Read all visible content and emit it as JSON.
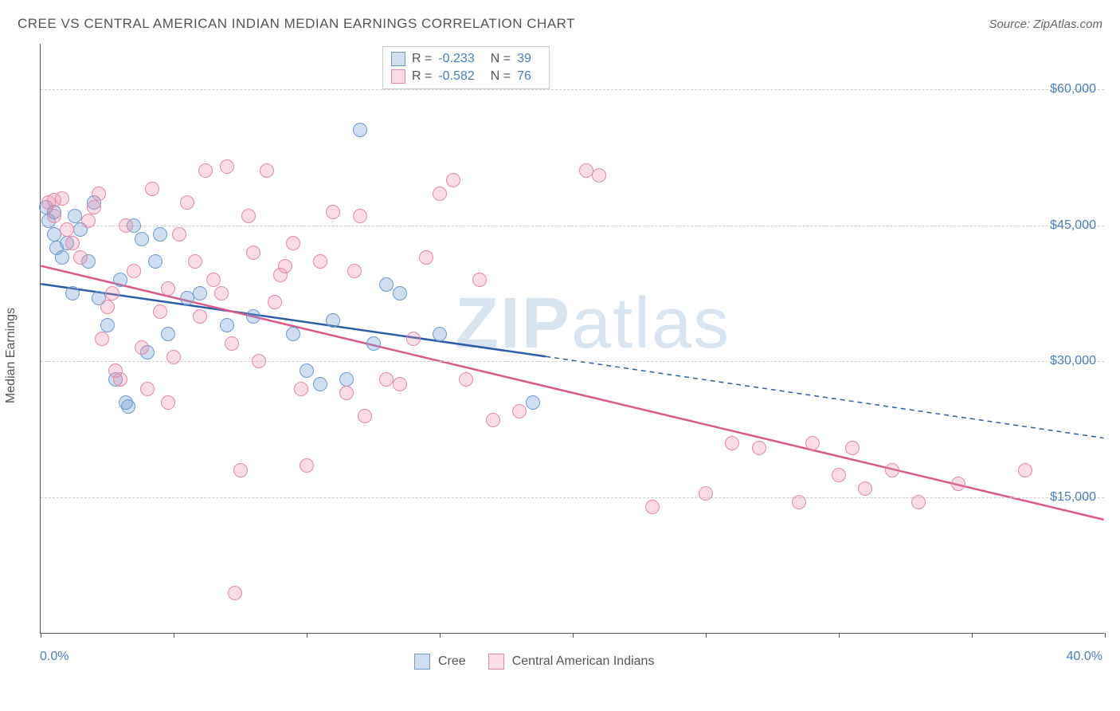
{
  "title": "CREE VS CENTRAL AMERICAN INDIAN MEDIAN EARNINGS CORRELATION CHART",
  "source": "Source: ZipAtlas.com",
  "ylabel": "Median Earnings",
  "watermark_bold": "ZIP",
  "watermark_rest": "atlas",
  "chart": {
    "type": "scatter",
    "xlim": [
      0,
      40
    ],
    "ylim": [
      0,
      65000
    ],
    "x_tick_positions": [
      0,
      5,
      10,
      15,
      20,
      25,
      30,
      35,
      40
    ],
    "x_tick_labels_shown": {
      "0": "0.0%",
      "40": "40.0%"
    },
    "y_ticks": [
      15000,
      30000,
      45000,
      60000
    ],
    "y_tick_labels": [
      "$15,000",
      "$30,000",
      "$45,000",
      "$60,000"
    ],
    "grid_color": "#cccccc",
    "background_color": "#ffffff",
    "axis_color": "#555555",
    "label_color": "#4a7ebb",
    "point_radius": 9,
    "point_fill_opacity": 0.35,
    "point_stroke_width": 1.5
  },
  "series": [
    {
      "name": "Cree",
      "color_fill": "rgba(120,160,210,0.35)",
      "color_stroke": "#6a9bd1",
      "line_color": "#2e5da8",
      "line_width": 2.5,
      "R": "-0.233",
      "N": "39",
      "trend": {
        "x1": 0,
        "y1": 38500,
        "x_solid_end": 19,
        "y_solid_end": 30500,
        "x2": 40,
        "y2": 21500
      },
      "points": [
        [
          0.2,
          47000
        ],
        [
          0.3,
          45500
        ],
        [
          0.5,
          44000
        ],
        [
          0.6,
          42500
        ],
        [
          0.8,
          41500
        ],
        [
          0.5,
          46500
        ],
        [
          1.0,
          43000
        ],
        [
          1.2,
          37500
        ],
        [
          1.5,
          44500
        ],
        [
          1.8,
          41000
        ],
        [
          2.0,
          47500
        ],
        [
          2.2,
          37000
        ],
        [
          2.5,
          34000
        ],
        [
          2.8,
          28000
        ],
        [
          3.0,
          39000
        ],
        [
          3.2,
          25500
        ],
        [
          3.3,
          25000
        ],
        [
          3.5,
          45000
        ],
        [
          3.8,
          43500
        ],
        [
          4.0,
          31000
        ],
        [
          4.3,
          41000
        ],
        [
          4.8,
          33000
        ],
        [
          4.5,
          44000
        ],
        [
          5.5,
          37000
        ],
        [
          6.0,
          37500
        ],
        [
          7.0,
          34000
        ],
        [
          8.0,
          35000
        ],
        [
          9.5,
          33000
        ],
        [
          10.0,
          29000
        ],
        [
          10.5,
          27500
        ],
        [
          11.0,
          34500
        ],
        [
          11.5,
          28000
        ],
        [
          12.0,
          55500
        ],
        [
          12.5,
          32000
        ],
        [
          13.0,
          38500
        ],
        [
          13.5,
          37500
        ],
        [
          15.0,
          33000
        ],
        [
          18.5,
          25500
        ],
        [
          1.3,
          46000
        ]
      ]
    },
    {
      "name": "Central American Indians",
      "color_fill": "rgba(235,140,170,0.30)",
      "color_stroke": "#e08aa8",
      "line_color": "#d85a8a",
      "line_width": 2.5,
      "R": "-0.582",
      "N": "76",
      "trend": {
        "x1": 0,
        "y1": 40500,
        "x_solid_end": 40,
        "y_solid_end": 12500,
        "x2": 40,
        "y2": 12500
      },
      "points": [
        [
          0.3,
          47500
        ],
        [
          0.5,
          46000
        ],
        [
          0.5,
          47800
        ],
        [
          0.8,
          48000
        ],
        [
          1.0,
          44500
        ],
        [
          1.2,
          43000
        ],
        [
          1.5,
          41500
        ],
        [
          1.8,
          45500
        ],
        [
          2.0,
          47000
        ],
        [
          2.2,
          48500
        ],
        [
          2.3,
          32500
        ],
        [
          2.5,
          36000
        ],
        [
          2.8,
          29000
        ],
        [
          3.0,
          28000
        ],
        [
          3.2,
          45000
        ],
        [
          3.5,
          40000
        ],
        [
          3.8,
          31500
        ],
        [
          4.0,
          27000
        ],
        [
          4.2,
          49000
        ],
        [
          4.5,
          35500
        ],
        [
          4.8,
          38000
        ],
        [
          5.0,
          30500
        ],
        [
          5.2,
          44000
        ],
        [
          5.5,
          47500
        ],
        [
          5.8,
          41000
        ],
        [
          6.0,
          35000
        ],
        [
          6.2,
          51000
        ],
        [
          6.5,
          39000
        ],
        [
          7.0,
          51500
        ],
        [
          7.2,
          32000
        ],
        [
          7.5,
          18000
        ],
        [
          7.8,
          46000
        ],
        [
          7.3,
          4500
        ],
        [
          8.0,
          42000
        ],
        [
          8.2,
          30000
        ],
        [
          8.5,
          51000
        ],
        [
          8.8,
          36500
        ],
        [
          9.0,
          39500
        ],
        [
          9.5,
          43000
        ],
        [
          9.8,
          27000
        ],
        [
          10.0,
          18500
        ],
        [
          10.5,
          41000
        ],
        [
          11.0,
          46500
        ],
        [
          11.5,
          26500
        ],
        [
          11.8,
          40000
        ],
        [
          12.0,
          46000
        ],
        [
          12.2,
          24000
        ],
        [
          13.0,
          28000
        ],
        [
          13.5,
          27500
        ],
        [
          14.0,
          32500
        ],
        [
          14.5,
          41500
        ],
        [
          15.0,
          48500
        ],
        [
          15.5,
          50000
        ],
        [
          16.0,
          28000
        ],
        [
          16.5,
          39000
        ],
        [
          17.0,
          23500
        ],
        [
          18.0,
          24500
        ],
        [
          20.5,
          51000
        ],
        [
          21.0,
          50500
        ],
        [
          23.0,
          14000
        ],
        [
          25.0,
          15500
        ],
        [
          26.0,
          21000
        ],
        [
          27.0,
          20500
        ],
        [
          28.5,
          14500
        ],
        [
          29.0,
          21000
        ],
        [
          30.0,
          17500
        ],
        [
          30.5,
          20500
        ],
        [
          31.0,
          16000
        ],
        [
          32.0,
          18000
        ],
        [
          33.0,
          14500
        ],
        [
          34.5,
          16500
        ],
        [
          37.0,
          18000
        ],
        [
          4.8,
          25500
        ],
        [
          6.8,
          37500
        ],
        [
          9.2,
          40500
        ],
        [
          2.7,
          37500
        ]
      ]
    }
  ],
  "stats_legend": {
    "rows": [
      {
        "swatch_fill": "rgba(120,160,210,0.35)",
        "swatch_stroke": "#6a9bd1",
        "R": "-0.233",
        "N": "39"
      },
      {
        "swatch_fill": "rgba(235,140,170,0.30)",
        "swatch_stroke": "#e08aa8",
        "R": "-0.582",
        "N": "76"
      }
    ]
  },
  "bottom_legend": [
    {
      "swatch_fill": "rgba(120,160,210,0.35)",
      "swatch_stroke": "#6a9bd1",
      "label": "Cree"
    },
    {
      "swatch_fill": "rgba(235,140,170,0.30)",
      "swatch_stroke": "#e08aa8",
      "label": "Central American Indians"
    }
  ]
}
